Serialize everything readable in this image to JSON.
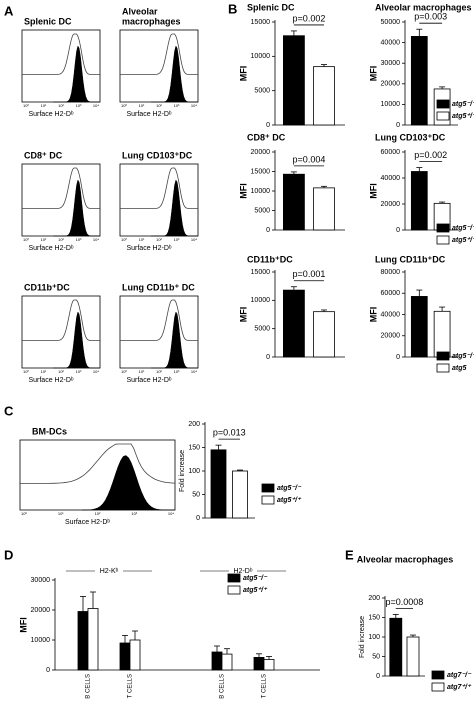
{
  "panel_letters": [
    "A",
    "B",
    "C",
    "D",
    "E"
  ],
  "histograms": {
    "tick_labels": [
      "10⁰",
      "10¹",
      "10²",
      "10³",
      "10⁴"
    ],
    "x_label": "Surface H2-Dᵇ",
    "titles": [
      [
        "Splenic DC"
      ],
      [
        "Alveolar",
        "macrophages"
      ],
      [
        "CD8⁺ DC"
      ],
      [
        "Lung CD103⁺DC"
      ],
      [
        "CD11b⁺DC"
      ],
      [
        "Lung CD11b⁺ DC"
      ],
      [
        "BM-DCs"
      ]
    ]
  },
  "chart_data": [
    {
      "type": "bar",
      "title": "Splenic DC",
      "ylabel": "MFI",
      "values": [
        13000,
        8500
      ],
      "errors": [
        700,
        300
      ],
      "colors": [
        "#000000",
        "#ffffff"
      ],
      "ylim": [
        0,
        15000
      ],
      "yticks": [
        0,
        5000,
        10000,
        15000
      ],
      "annotation": "p=0.002"
    },
    {
      "type": "bar",
      "title": "Alveolar macrophages",
      "ylabel": "MFI",
      "values": [
        43000,
        17500
      ],
      "errors": [
        3500,
        1000
      ],
      "colors": [
        "#000000",
        "#ffffff"
      ],
      "ylim": [
        0,
        50000
      ],
      "yticks": [
        0,
        10000,
        20000,
        30000,
        40000,
        50000
      ],
      "annotation": "p=0.003",
      "legend": [
        "atg5⁻/⁻",
        "atg5⁺/⁺"
      ]
    },
    {
      "type": "bar",
      "title": "CD8⁺ DC",
      "ylabel": "MFI",
      "values": [
        14300,
        10800
      ],
      "errors": [
        600,
        400
      ],
      "colors": [
        "#000000",
        "#ffffff"
      ],
      "ylim": [
        0,
        20000
      ],
      "yticks": [
        0,
        5000,
        10000,
        15000,
        20000
      ],
      "annotation": "p=0.004"
    },
    {
      "type": "bar",
      "title": "Lung CD103⁺DC",
      "ylabel": "MFI",
      "values": [
        45000,
        20500
      ],
      "errors": [
        3000,
        1000
      ],
      "colors": [
        "#000000",
        "#ffffff"
      ],
      "ylim": [
        0,
        60000
      ],
      "yticks": [
        0,
        20000,
        40000,
        60000
      ],
      "annotation": "p=0.002",
      "legend": [
        "atg5⁻/⁻",
        "atg5⁺/⁺"
      ]
    },
    {
      "type": "bar",
      "title": "CD11b⁺DC",
      "ylabel": "MFI",
      "values": [
        11800,
        8000
      ],
      "errors": [
        600,
        300
      ],
      "colors": [
        "#000000",
        "#ffffff"
      ],
      "ylim": [
        0,
        15000
      ],
      "yticks": [
        0,
        5000,
        10000,
        15000
      ],
      "annotation": "p=0.001"
    },
    {
      "type": "bar",
      "title": "Lung CD11b⁺DC",
      "ylabel": "MFI",
      "values": [
        57000,
        43000
      ],
      "errors": [
        6000,
        4000
      ],
      "colors": [
        "#000000",
        "#ffffff"
      ],
      "ylim": [
        0,
        80000
      ],
      "yticks": [
        0,
        20000,
        40000,
        60000,
        80000
      ],
      "legend": [
        "atg5⁻/⁻",
        "atg5"
      ]
    },
    {
      "type": "bar",
      "ylabel": "Fold increase",
      "values": [
        145,
        100
      ],
      "errors": [
        10,
        2
      ],
      "colors": [
        "#000000",
        "#ffffff"
      ],
      "ylim": [
        0,
        200
      ],
      "yticks": [
        0,
        50,
        100,
        150,
        200
      ],
      "annotation": "p=0.013",
      "legend": [
        "atg5⁻/⁻",
        "atg5⁺/⁺"
      ]
    },
    {
      "type": "grouped_bar",
      "ylabel": "MFI",
      "groups": [
        "H2-Kᵇ",
        "H2-Dᵇ"
      ],
      "categories": [
        "B CELLS",
        "T CELLS",
        "B CELLS",
        "T CELLS"
      ],
      "series": [
        {
          "name": "atg5⁻/⁻",
          "color": "#000000",
          "values": [
            19500,
            9000,
            6000,
            4200
          ],
          "errors": [
            5000,
            2500,
            2000,
            1200
          ]
        },
        {
          "name": "atg5⁺/⁺",
          "color": "#ffffff",
          "values": [
            20500,
            10000,
            5300,
            3500
          ],
          "errors": [
            5500,
            3000,
            1800,
            1000
          ]
        }
      ],
      "ylim": [
        0,
        30000
      ],
      "yticks": [
        0,
        10000,
        20000,
        30000
      ]
    },
    {
      "type": "bar",
      "title": "Alveolar macrophages",
      "ylabel": "Fold increase",
      "values": [
        148,
        100
      ],
      "errors": [
        10,
        5
      ],
      "colors": [
        "#000000",
        "#ffffff"
      ],
      "ylim": [
        0,
        200
      ],
      "yticks": [
        0,
        50,
        100,
        150,
        200
      ],
      "annotation": "p=0.0008",
      "legend": [
        "atg7⁻/⁻",
        "atg7⁺/⁺"
      ]
    }
  ]
}
